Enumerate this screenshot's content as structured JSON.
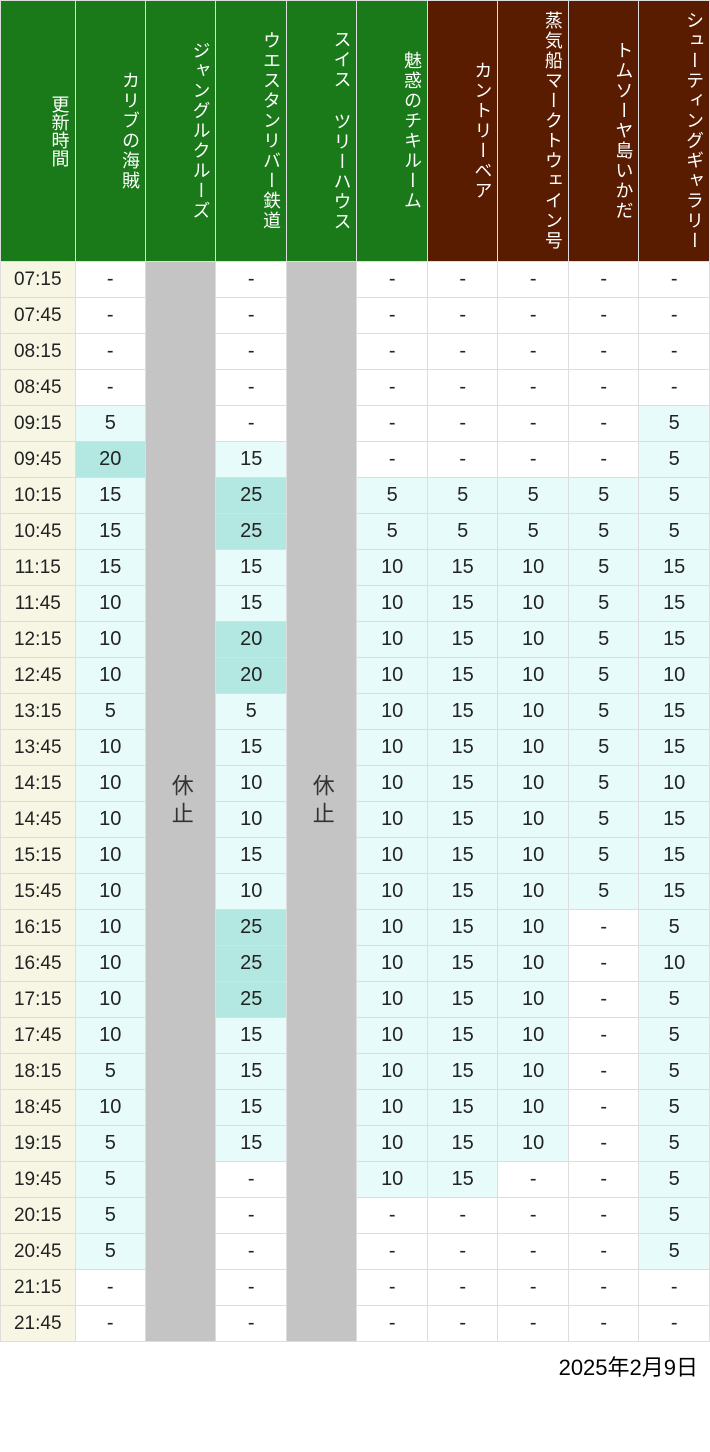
{
  "colors": {
    "header_green": "#1a7a1a",
    "header_brown": "#5a1c00",
    "time_bg": "#f7f5e3",
    "closed_bg": "#c4c4c4",
    "closed_text": "#333333",
    "cell_white": "#ffffff",
    "cell_mint_light": "#e8fbfb",
    "cell_mint_mid": "#b3e8e2",
    "text_color": "#222222",
    "border_color": "#dddddd"
  },
  "thresholds": {
    "mid_min": 20
  },
  "footer_date": "2025年2月9日",
  "closed_label": "休止",
  "columns": [
    {
      "key": "time",
      "label": "更新時間",
      "group": "green"
    },
    {
      "key": "caribbean",
      "label": "カリブの海賊",
      "group": "green"
    },
    {
      "key": "jungle",
      "label": "ジャングルクルーズ",
      "group": "green",
      "closed": true
    },
    {
      "key": "western",
      "label": "ウエスタンリバー鉄道",
      "group": "green"
    },
    {
      "key": "swiss",
      "label": "スイス ツリーハウス",
      "group": "green",
      "closed": true
    },
    {
      "key": "tiki",
      "label": "魅惑のチキルーム",
      "group": "green"
    },
    {
      "key": "country",
      "label": "カントリーベア",
      "group": "brown"
    },
    {
      "key": "mark",
      "label": "蒸気船マークトウェイン号",
      "group": "brown"
    },
    {
      "key": "tom",
      "label": "トムソーヤ島いかだ",
      "group": "brown"
    },
    {
      "key": "shooting",
      "label": "シューティングギャラリー",
      "group": "brown"
    }
  ],
  "times": [
    "07:15",
    "07:45",
    "08:15",
    "08:45",
    "09:15",
    "09:45",
    "10:15",
    "10:45",
    "11:15",
    "11:45",
    "12:15",
    "12:45",
    "13:15",
    "13:45",
    "14:15",
    "14:45",
    "15:15",
    "15:45",
    "16:15",
    "16:45",
    "17:15",
    "17:45",
    "18:15",
    "18:45",
    "19:15",
    "19:45",
    "20:15",
    "20:45",
    "21:15",
    "21:45"
  ],
  "data": {
    "caribbean": [
      "-",
      "-",
      "-",
      "-",
      "5",
      "20",
      "15",
      "15",
      "15",
      "10",
      "10",
      "10",
      "5",
      "10",
      "10",
      "10",
      "10",
      "10",
      "10",
      "10",
      "10",
      "10",
      "5",
      "10",
      "5",
      "5",
      "5",
      "5",
      "-",
      "-"
    ],
    "western": [
      "-",
      "-",
      "-",
      "-",
      "-",
      "15",
      "25",
      "25",
      "15",
      "15",
      "20",
      "20",
      "5",
      "15",
      "10",
      "10",
      "15",
      "10",
      "25",
      "25",
      "25",
      "15",
      "15",
      "15",
      "15",
      "-",
      "-",
      "-",
      "-",
      "-"
    ],
    "tiki": [
      "-",
      "-",
      "-",
      "-",
      "-",
      "-",
      "5",
      "5",
      "10",
      "10",
      "10",
      "10",
      "10",
      "10",
      "10",
      "10",
      "10",
      "10",
      "10",
      "10",
      "10",
      "10",
      "10",
      "10",
      "10",
      "10",
      "-",
      "-",
      "-",
      "-"
    ],
    "country": [
      "-",
      "-",
      "-",
      "-",
      "-",
      "-",
      "5",
      "5",
      "15",
      "15",
      "15",
      "15",
      "15",
      "15",
      "15",
      "15",
      "15",
      "15",
      "15",
      "15",
      "15",
      "15",
      "15",
      "15",
      "15",
      "15",
      "-",
      "-",
      "-",
      "-"
    ],
    "mark": [
      "-",
      "-",
      "-",
      "-",
      "-",
      "-",
      "5",
      "5",
      "10",
      "10",
      "10",
      "10",
      "10",
      "10",
      "10",
      "10",
      "10",
      "10",
      "10",
      "10",
      "10",
      "10",
      "10",
      "10",
      "10",
      "-",
      "-",
      "-",
      "-",
      "-"
    ],
    "tom": [
      "-",
      "-",
      "-",
      "-",
      "-",
      "-",
      "5",
      "5",
      "5",
      "5",
      "5",
      "5",
      "5",
      "5",
      "5",
      "5",
      "5",
      "5",
      "-",
      "-",
      "-",
      "-",
      "-",
      "-",
      "-",
      "-",
      "-",
      "-",
      "-",
      "-"
    ],
    "shooting": [
      "-",
      "-",
      "-",
      "-",
      "5",
      "5",
      "5",
      "5",
      "15",
      "15",
      "15",
      "10",
      "15",
      "15",
      "10",
      "15",
      "15",
      "15",
      "5",
      "10",
      "5",
      "5",
      "5",
      "5",
      "5",
      "5",
      "5",
      "5",
      "-",
      "-"
    ]
  }
}
